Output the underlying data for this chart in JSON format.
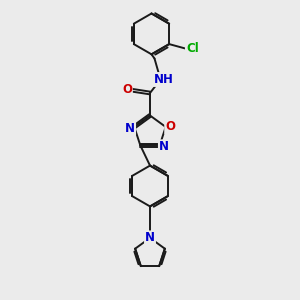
{
  "bg_color": "#ebebeb",
  "bond_color": "#1a1a1a",
  "bond_width": 1.4,
  "atom_colors": {
    "N": "#0000cc",
    "O": "#cc0000",
    "Cl": "#00aa00",
    "C": "#1a1a1a",
    "H": "#555555"
  },
  "font_size": 8.5
}
